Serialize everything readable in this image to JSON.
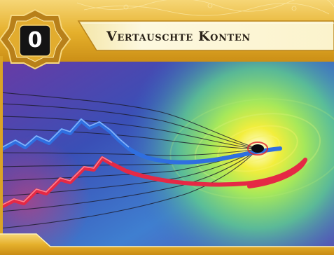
{
  "card": {
    "cost": "0",
    "title": "Vertauschte Konten"
  },
  "art": {
    "subject": "stock-chart-lines-into-black-hole",
    "colors": {
      "frame_gold": "#e7b431",
      "frame_gold_light": "#f7dc84",
      "title_banner": "#fbf3cc",
      "cost_badge": "#141414",
      "sky_purple": "#6d3ca0",
      "sky_blue": "#2a57b8",
      "vortex_green": "#8ee15a",
      "vortex_yellow": "#f2ee3c",
      "line_blue": "#2f6fe0",
      "line_red": "#e52945"
    }
  }
}
